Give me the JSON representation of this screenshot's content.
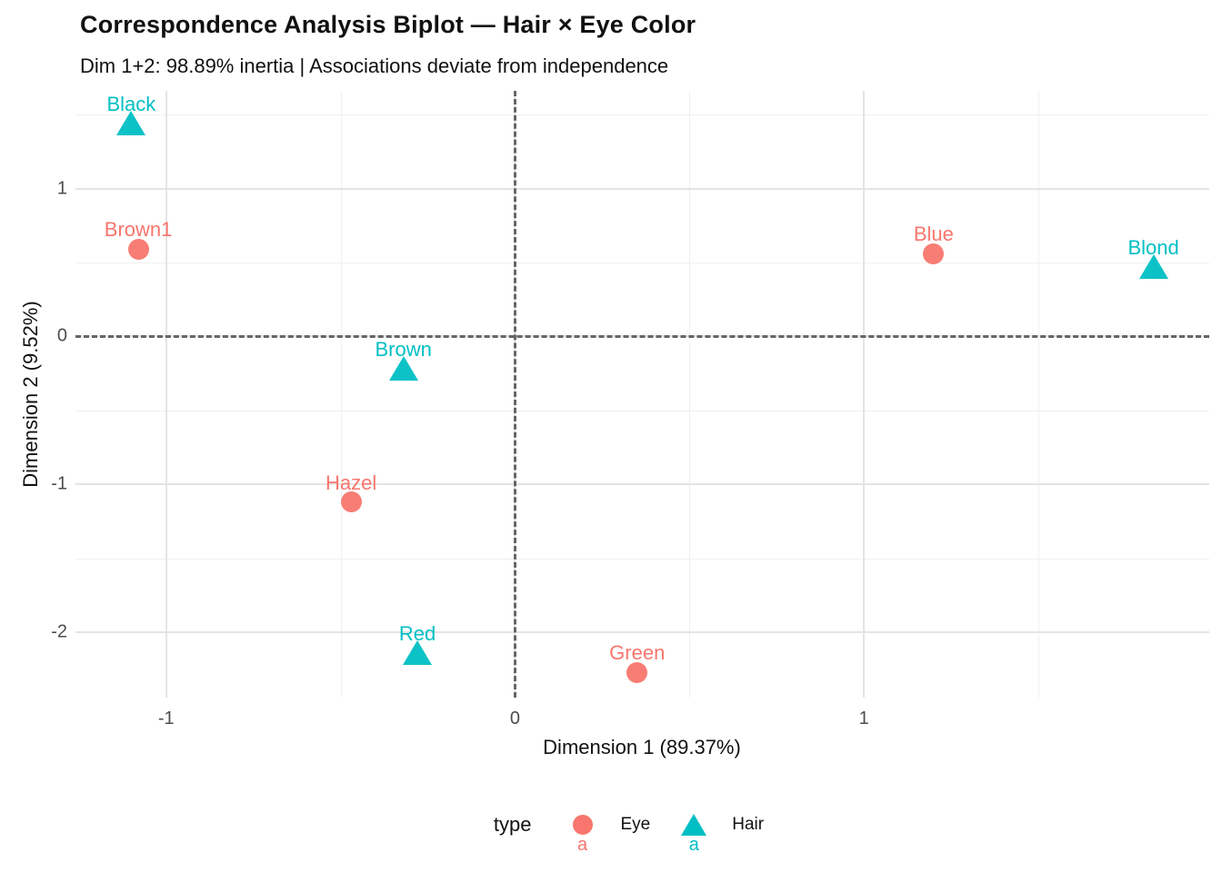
{
  "header": {
    "title": "Correspondence Analysis Biplot — Hair × Eye Color",
    "subtitle": "Dim 1+2: 98.89% inertia | Associations deviate from independence"
  },
  "chart_data": {
    "type": "scatter",
    "title": "Correspondence Analysis Biplot — Hair × Eye Color",
    "subtitle": "Dim 1+2: 98.89% inertia | Associations deviate from independence",
    "xlabel": "Dimension 1 (89.37%)",
    "ylabel": "Dimension 2 (9.52%)",
    "xlim": [
      -1.26,
      1.99
    ],
    "ylim": [
      -2.44,
      1.66
    ],
    "x_major_ticks": [
      -1,
      0,
      1
    ],
    "x_minor_ticks": [
      -0.5,
      0.5,
      1.5
    ],
    "y_major_ticks": [
      1,
      0,
      -1,
      -2
    ],
    "y_minor_ticks": [
      1.5,
      0.5,
      -0.5,
      -1.5
    ],
    "grid": true,
    "reference_lines": {
      "vline_x": 0,
      "hline_y": 0,
      "style": "dashed",
      "color": "#666666"
    },
    "series": [
      {
        "name": "Eye",
        "marker": "circle",
        "color": "#F8766D",
        "points": [
          {
            "label": "Brown1",
            "x": -1.08,
            "y": 0.59
          },
          {
            "label": "Blue",
            "x": 1.2,
            "y": 0.56
          },
          {
            "label": "Hazel",
            "x": -0.47,
            "y": -1.12
          },
          {
            "label": "Green",
            "x": 0.35,
            "y": -2.27
          }
        ]
      },
      {
        "name": "Hair",
        "marker": "triangle",
        "color": "#00BFC4",
        "points": [
          {
            "label": "Black",
            "x": -1.1,
            "y": 1.44
          },
          {
            "label": "Brown",
            "x": -0.32,
            "y": -0.22
          },
          {
            "label": "Red",
            "x": -0.28,
            "y": -2.14
          },
          {
            "label": "Blond",
            "x": 1.83,
            "y": 0.47
          }
        ]
      }
    ],
    "legend": {
      "title": "type",
      "position": "bottom",
      "key_text_glyph": "a",
      "entries": [
        {
          "label": "Eye",
          "marker": "circle",
          "color": "#F8766D"
        },
        {
          "label": "Hair",
          "marker": "triangle",
          "color": "#00BFC4"
        }
      ]
    }
  }
}
